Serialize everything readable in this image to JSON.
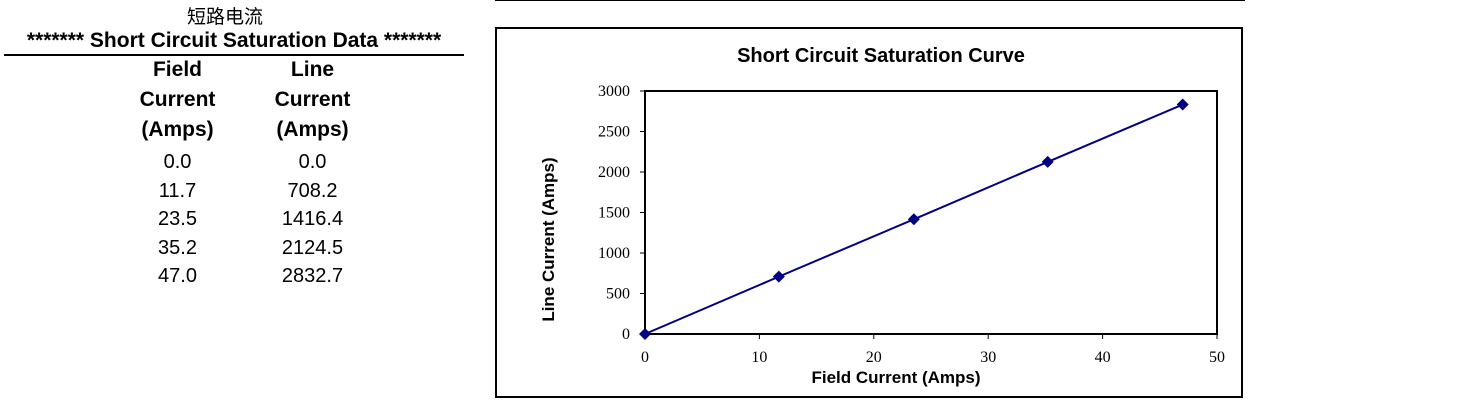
{
  "caption": "短路电流",
  "table": {
    "title": "******* Short Circuit Saturation Data *******",
    "headers": {
      "field": [
        "Field",
        "Current",
        "(Amps)"
      ],
      "line": [
        "Line",
        "Current",
        "(Amps)"
      ]
    },
    "rows": [
      {
        "field": "0.0",
        "line": "0.0"
      },
      {
        "field": "11.7",
        "line": "708.2"
      },
      {
        "field": "23.5",
        "line": "1416.4"
      },
      {
        "field": "35.2",
        "line": "2124.5"
      },
      {
        "field": "47.0",
        "line": "2832.7"
      }
    ]
  },
  "chart_data": {
    "type": "line",
    "title": "Short Circuit Saturation Curve",
    "xlabel": "Field Current (Amps)",
    "ylabel": "Line Current (Amps)",
    "xlim": [
      0,
      50
    ],
    "ylim": [
      0,
      3000
    ],
    "xticks": [
      0,
      10,
      20,
      30,
      40,
      50
    ],
    "yticks": [
      0,
      500,
      1000,
      1500,
      2000,
      2500,
      3000
    ],
    "grid": false,
    "legend": "none",
    "series": [
      {
        "x": [
          0.0,
          11.7,
          23.5,
          35.2,
          47.0
        ],
        "y": [
          0.0,
          708.2,
          1416.4,
          2124.5,
          2832.7
        ],
        "color": "#000080",
        "marker": "diamond"
      }
    ]
  }
}
